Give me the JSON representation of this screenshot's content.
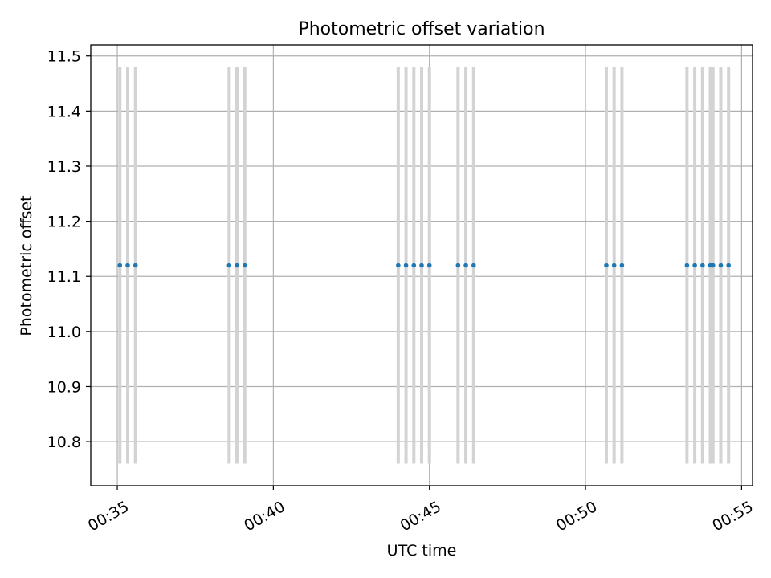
{
  "chart_data": {
    "type": "scatter",
    "title": "Photometric offset variation",
    "xlabel": "UTC time",
    "ylabel": "Photometric offset",
    "xlim": [
      "00:34:09",
      "00:55:21"
    ],
    "ylim": [
      10.72,
      11.52
    ],
    "x_ticks": [
      "00:35",
      "00:40",
      "00:45",
      "00:50",
      "00:55"
    ],
    "y_ticks": [
      "10.8",
      "10.9",
      "11.0",
      "11.1",
      "11.2",
      "11.3",
      "11.4",
      "11.5"
    ],
    "grid": true,
    "series": [
      {
        "x": [
          "00:35:05",
          "00:35:20",
          "00:35:35",
          "00:38:35",
          "00:38:50",
          "00:39:05",
          "00:44:00",
          "00:44:15",
          "00:44:30",
          "00:44:45",
          "00:45:00",
          "00:45:55",
          "00:46:10",
          "00:46:25",
          "00:50:40",
          "00:50:55",
          "00:51:10",
          "00:53:15",
          "00:53:30",
          "00:53:45",
          "00:54:00",
          "00:54:05",
          "00:54:20",
          "00:54:35"
        ],
        "y": [
          11.12,
          11.12,
          11.12,
          11.12,
          11.12,
          11.12,
          11.12,
          11.12,
          11.12,
          11.12,
          11.12,
          11.12,
          11.12,
          11.12,
          11.12,
          11.12,
          11.12,
          11.12,
          11.12,
          11.12,
          11.12,
          11.12,
          11.12,
          11.12
        ],
        "y_error_low": [
          10.76,
          10.76,
          10.76,
          10.76,
          10.76,
          10.76,
          10.76,
          10.76,
          10.76,
          10.76,
          10.76,
          10.76,
          10.76,
          10.76,
          10.76,
          10.76,
          10.76,
          10.76,
          10.76,
          10.76,
          10.76,
          10.76,
          10.76,
          10.76
        ],
        "y_error_high": [
          11.48,
          11.48,
          11.48,
          11.48,
          11.48,
          11.48,
          11.48,
          11.48,
          11.48,
          11.48,
          11.48,
          11.48,
          11.48,
          11.48,
          11.48,
          11.48,
          11.48,
          11.48,
          11.48,
          11.48,
          11.48,
          11.48,
          11.48,
          11.48
        ]
      }
    ],
    "colors": {
      "point": "#1f77b4",
      "error_bar": "#d3d3d3",
      "grid": "#b0b0b0",
      "axes": "#000000"
    }
  }
}
